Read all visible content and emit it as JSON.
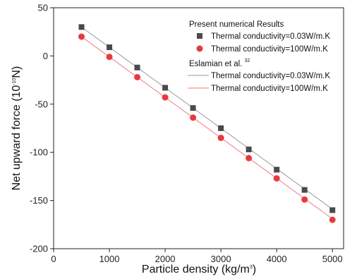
{
  "chart_data": {
    "type": "scatter",
    "xlabel": "Particle density (kg/m",
    "xlabel_sup": "3",
    "xlabel_end": ")",
    "ylabel": "Net upward force (10",
    "ylabel_sup": "-10",
    "ylabel_end": "N)",
    "xlim": [
      0,
      5200
    ],
    "ylim": [
      -200,
      50
    ],
    "xticks": [
      0,
      1000,
      2000,
      3000,
      4000,
      5000
    ],
    "yticks": [
      50,
      0,
      -50,
      -100,
      -150,
      -200
    ],
    "grid": false,
    "legend_position": "top-right",
    "legend": {
      "group1_title": "Present numerical Results",
      "group2_title": "Eslamian et al.",
      "group2_ref": "32"
    },
    "series": [
      {
        "name": "Thermal conductivity=0.03W/m.K",
        "kind": "markers",
        "marker": "square",
        "color": "#4a4a4a",
        "x": [
          500,
          1000,
          1500,
          2000,
          2500,
          3000,
          3500,
          4000,
          4500,
          5000
        ],
        "y": [
          30,
          9,
          -12,
          -33,
          -54,
          -75,
          -97,
          -118,
          -139,
          -160
        ]
      },
      {
        "name": "Thermal conductivity=100W/m.K",
        "kind": "markers",
        "marker": "circle",
        "color": "#e8393f",
        "x": [
          500,
          1000,
          1500,
          2000,
          2500,
          3000,
          3500,
          4000,
          4500,
          5000
        ],
        "y": [
          20,
          -1,
          -22,
          -43,
          -64,
          -85,
          -106,
          -127,
          -149,
          -170
        ]
      },
      {
        "name": "Thermal conductivity=0.03W/m.K",
        "kind": "line",
        "color": "#9a9a9a",
        "x": [
          500,
          5000
        ],
        "y": [
          30,
          -159
        ]
      },
      {
        "name": "Thermal conductivity=100W/m.K",
        "kind": "line",
        "color": "#f07a7e",
        "x": [
          500,
          5000
        ],
        "y": [
          20,
          -169
        ]
      }
    ]
  }
}
